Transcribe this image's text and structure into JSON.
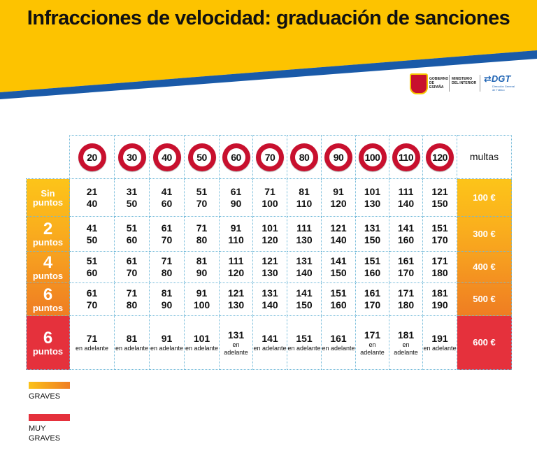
{
  "title": "Infracciones de velocidad: graduación de sanciones",
  "logos": {
    "gobierno": "GOBIERNO DE ESPAÑA",
    "ministerio": "MINISTERIO DEL INTERIOR",
    "dgt": "DGT",
    "dgt_sub": "Dirección General de Tráfico"
  },
  "colors": {
    "banner_yellow": "#fdc300",
    "banner_blue": "#1a5aa8",
    "graves_gradient_start": "#fbc21a",
    "graves_gradient_end": "#ef7d22",
    "muy_graves": "#e5313c",
    "sign_red": "#c8102e"
  },
  "table": {
    "limits": [
      "20",
      "30",
      "40",
      "50",
      "60",
      "70",
      "80",
      "90",
      "100",
      "110",
      "120"
    ],
    "fines_header": "multas",
    "bands": [
      {
        "label_main": "Sin",
        "label_sub": "puntos",
        "fine": "100 €",
        "cells": [
          [
            "21",
            "40"
          ],
          [
            "31",
            "50"
          ],
          [
            "41",
            "60"
          ],
          [
            "51",
            "70"
          ],
          [
            "61",
            "90"
          ],
          [
            "71",
            "100"
          ],
          [
            "81",
            "110"
          ],
          [
            "91",
            "120"
          ],
          [
            "101",
            "130"
          ],
          [
            "111",
            "140"
          ],
          [
            "121",
            "150"
          ]
        ]
      },
      {
        "label_main": "2",
        "label_sub": "puntos",
        "fine": "300 €",
        "cells": [
          [
            "41",
            "50"
          ],
          [
            "51",
            "60"
          ],
          [
            "61",
            "70"
          ],
          [
            "71",
            "80"
          ],
          [
            "91",
            "110"
          ],
          [
            "101",
            "120"
          ],
          [
            "111",
            "130"
          ],
          [
            "121",
            "140"
          ],
          [
            "131",
            "150"
          ],
          [
            "141",
            "160"
          ],
          [
            "151",
            "170"
          ]
        ]
      },
      {
        "label_main": "4",
        "label_sub": "puntos",
        "fine": "400 €",
        "cells": [
          [
            "51",
            "60"
          ],
          [
            "61",
            "70"
          ],
          [
            "71",
            "80"
          ],
          [
            "81",
            "90"
          ],
          [
            "111",
            "120"
          ],
          [
            "121",
            "130"
          ],
          [
            "131",
            "140"
          ],
          [
            "141",
            "150"
          ],
          [
            "151",
            "160"
          ],
          [
            "161",
            "170"
          ],
          [
            "171",
            "180"
          ]
        ]
      },
      {
        "label_main": "6",
        "label_sub": "puntos",
        "fine": "500 €",
        "cells": [
          [
            "61",
            "70"
          ],
          [
            "71",
            "80"
          ],
          [
            "81",
            "90"
          ],
          [
            "91",
            "100"
          ],
          [
            "121",
            "130"
          ],
          [
            "131",
            "140"
          ],
          [
            "141",
            "150"
          ],
          [
            "151",
            "160"
          ],
          [
            "161",
            "170"
          ],
          [
            "171",
            "180"
          ],
          [
            "181",
            "190"
          ]
        ]
      },
      {
        "label_main": "6",
        "label_sub": "puntos",
        "fine": "600 €",
        "cells": [
          [
            "71",
            "en adelante"
          ],
          [
            "81",
            "en adelante"
          ],
          [
            "91",
            "en adelante"
          ],
          [
            "101",
            "en adelante"
          ],
          [
            "131",
            "en adelante"
          ],
          [
            "141",
            "en adelante"
          ],
          [
            "151",
            "en adelante"
          ],
          [
            "161",
            "en adelante"
          ],
          [
            "171",
            "en adelante"
          ],
          [
            "181",
            "en adelante"
          ],
          [
            "191",
            "en adelante"
          ]
        ]
      }
    ]
  },
  "legend": {
    "graves": "GRAVES",
    "muy_graves_line1": "MUY",
    "muy_graves_line2": "GRAVES"
  }
}
